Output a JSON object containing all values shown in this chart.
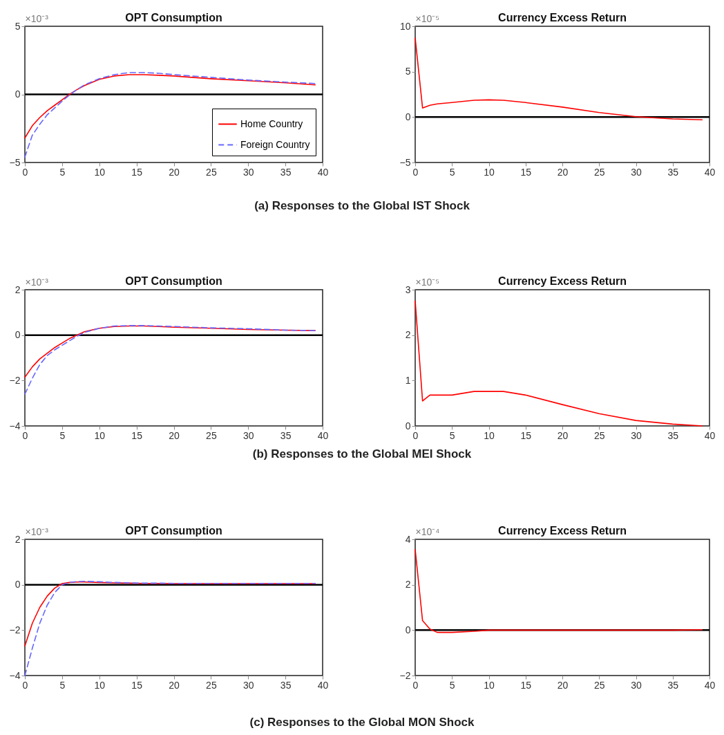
{
  "chart_data": [
    {
      "type": "line",
      "title": "OPT Consumption",
      "ylabel": "×10⁻³",
      "x": [
        0,
        1,
        2,
        3,
        4,
        5,
        6,
        7,
        8,
        10,
        12,
        14,
        16,
        18,
        20,
        25,
        30,
        35,
        39
      ],
      "series": [
        {
          "name": "Home Country",
          "color": "#ff0000",
          "line_style": "solid",
          "values": [
            -3.2,
            -2.3,
            -1.7,
            -1.2,
            -0.8,
            -0.4,
            0,
            0.35,
            0.65,
            1.1,
            1.35,
            1.45,
            1.45,
            1.4,
            1.35,
            1.15,
            1.0,
            0.85,
            0.7
          ]
        },
        {
          "name": "Foreign Country",
          "color": "#6666ff",
          "line_style": "dashed",
          "values": [
            -4.6,
            -3.0,
            -2.2,
            -1.5,
            -1.0,
            -0.5,
            -0.05,
            0.35,
            0.7,
            1.15,
            1.45,
            1.6,
            1.6,
            1.55,
            1.45,
            1.25,
            1.05,
            0.9,
            0.8
          ]
        }
      ],
      "xlim": [
        0,
        40
      ],
      "xticks": [
        0,
        5,
        10,
        15,
        20,
        25,
        30,
        35,
        40
      ],
      "ylim": [
        -5,
        5
      ],
      "yticks": [
        -5,
        0,
        5
      ],
      "grid": false,
      "legend": "bottom right",
      "ref_lines": [
        {
          "axis": "y",
          "value": 0
        }
      ],
      "annotations": [
        "(a) Responses to the Global IST Shock"
      ]
    },
    {
      "type": "line",
      "title": "Currency Excess Return",
      "ylabel": "×10⁻⁵",
      "x": [
        0,
        1,
        2,
        3,
        5,
        8,
        10,
        12,
        15,
        20,
        25,
        30,
        35,
        39
      ],
      "series": [
        {
          "color": "#ff0000",
          "values": [
            8.7,
            1.0,
            1.3,
            1.45,
            1.6,
            1.85,
            1.9,
            1.85,
            1.6,
            1.1,
            0.5,
            0.05,
            -0.2,
            -0.3
          ]
        }
      ],
      "xlim": [
        0,
        40
      ],
      "xticks": [
        0,
        5,
        10,
        15,
        20,
        25,
        30,
        35,
        40
      ],
      "ylim": [
        -5,
        10
      ],
      "yticks": [
        -5,
        0,
        5,
        10
      ],
      "grid": false,
      "ref_lines": [
        {
          "axis": "y",
          "value": 0
        }
      ]
    },
    {
      "type": "line",
      "title": "OPT Consumption",
      "ylabel": "×10⁻³",
      "x": [
        0,
        1,
        2,
        3,
        4,
        5,
        6,
        7,
        8,
        10,
        12,
        14,
        16,
        18,
        20,
        25,
        30,
        35,
        39
      ],
      "series": [
        {
          "color": "#ff0000",
          "line_style": "solid",
          "values": [
            -1.85,
            -1.4,
            -1.05,
            -0.8,
            -0.55,
            -0.35,
            -0.15,
            0,
            0.15,
            0.3,
            0.38,
            0.4,
            0.4,
            0.38,
            0.35,
            0.3,
            0.25,
            0.22,
            0.2
          ]
        },
        {
          "color": "#6666ff",
          "line_style": "dashed",
          "values": [
            -2.6,
            -1.9,
            -1.3,
            -0.9,
            -0.65,
            -0.45,
            -0.25,
            -0.05,
            0.12,
            0.3,
            0.4,
            0.42,
            0.42,
            0.4,
            0.38,
            0.32,
            0.28,
            0.22,
            0.2
          ]
        }
      ],
      "xlim": [
        0,
        40
      ],
      "xticks": [
        0,
        5,
        10,
        15,
        20,
        25,
        30,
        35,
        40
      ],
      "ylim": [
        -4,
        2
      ],
      "yticks": [
        -4,
        -2,
        0,
        2
      ],
      "grid": false,
      "ref_lines": [
        {
          "axis": "y",
          "value": 0
        }
      ],
      "annotations": [
        "(b) Responses to the Global MEI Shock"
      ]
    },
    {
      "type": "line",
      "title": "Currency Excess Return",
      "ylabel": "×10⁻⁵",
      "x": [
        0,
        1,
        2,
        5,
        8,
        10,
        12,
        15,
        20,
        25,
        30,
        35,
        39
      ],
      "series": [
        {
          "color": "#ff0000",
          "values": [
            2.75,
            0.55,
            0.68,
            0.68,
            0.76,
            0.76,
            0.76,
            0.68,
            0.47,
            0.27,
            0.12,
            0.04,
            0.0
          ]
        }
      ],
      "xlim": [
        0,
        40
      ],
      "xticks": [
        0,
        5,
        10,
        15,
        20,
        25,
        30,
        35,
        40
      ],
      "ylim": [
        0,
        3
      ],
      "yticks": [
        0,
        1,
        2,
        3
      ],
      "grid": false
    },
    {
      "type": "line",
      "title": "OPT Consumption",
      "ylabel": "×10⁻³",
      "x": [
        0,
        1,
        2,
        3,
        4,
        5,
        6,
        7,
        8,
        10,
        12,
        14,
        16,
        18,
        20,
        25,
        30,
        35,
        39
      ],
      "series": [
        {
          "color": "#ff0000",
          "line_style": "solid",
          "values": [
            -2.7,
            -1.7,
            -1.0,
            -0.5,
            -0.15,
            0.05,
            0.1,
            0.12,
            0.12,
            0.1,
            0.08,
            0.07,
            0.06,
            0.06,
            0.05,
            0.05,
            0.05,
            0.05,
            0.05
          ]
        },
        {
          "color": "#6666ff",
          "line_style": "dashed",
          "values": [
            -4.0,
            -2.8,
            -1.7,
            -0.9,
            -0.35,
            0,
            0.1,
            0.14,
            0.15,
            0.13,
            0.1,
            0.08,
            0.07,
            0.07,
            0.06,
            0.06,
            0.06,
            0.06,
            0.06
          ]
        }
      ],
      "xlim": [
        0,
        40
      ],
      "xticks": [
        0,
        5,
        10,
        15,
        20,
        25,
        30,
        35,
        40
      ],
      "ylim": [
        -4,
        2
      ],
      "yticks": [
        -4,
        -2,
        0,
        2
      ],
      "grid": false,
      "ref_lines": [
        {
          "axis": "y",
          "value": 0
        }
      ],
      "annotations": [
        "(c) Responses to the Global MON Shock"
      ]
    },
    {
      "type": "line",
      "title": "Currency Excess Return",
      "ylabel": "×10⁻⁴",
      "x": [
        0,
        1,
        2,
        3,
        5,
        8,
        10,
        15,
        20,
        25,
        30,
        35,
        39
      ],
      "series": [
        {
          "color": "#ff0000",
          "values": [
            3.55,
            0.42,
            0.05,
            -0.1,
            -0.1,
            -0.05,
            0,
            0,
            0,
            0,
            0,
            0,
            0.02
          ]
        }
      ],
      "xlim": [
        0,
        40
      ],
      "xticks": [
        0,
        5,
        10,
        15,
        20,
        25,
        30,
        35,
        40
      ],
      "ylim": [
        -2,
        4
      ],
      "yticks": [
        -2,
        0,
        2,
        4
      ],
      "grid": false,
      "ref_lines": [
        {
          "axis": "y",
          "value": 0
        }
      ]
    }
  ]
}
